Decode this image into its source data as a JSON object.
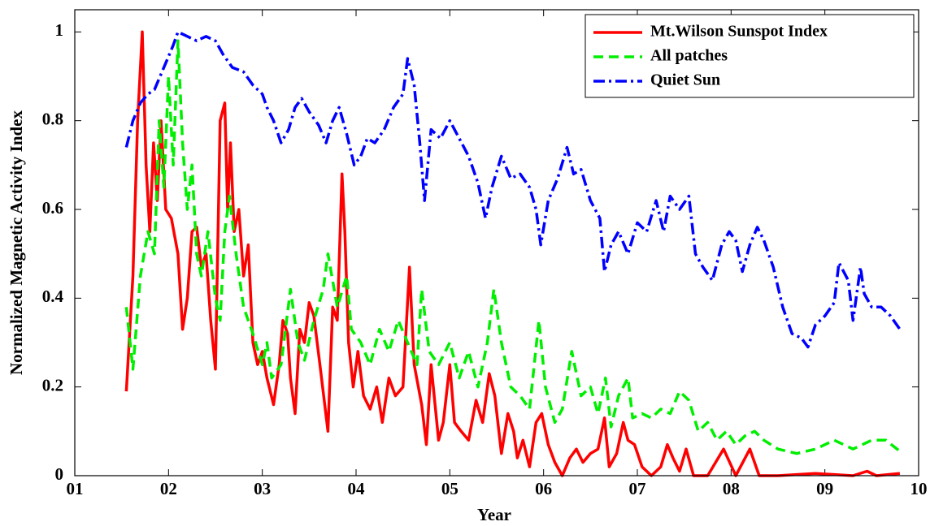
{
  "chart_data": {
    "type": "line",
    "x_label": "Year",
    "y_label": "Normalized Magnetic Activity Index",
    "xlim": [
      1,
      10
    ],
    "ylim": [
      0,
      1.05
    ],
    "xticks": [
      {
        "value": 1,
        "label": "01"
      },
      {
        "value": 2,
        "label": "02"
      },
      {
        "value": 3,
        "label": "03"
      },
      {
        "value": 4,
        "label": "04"
      },
      {
        "value": 5,
        "label": "05"
      },
      {
        "value": 6,
        "label": "06"
      },
      {
        "value": 7,
        "label": "07"
      },
      {
        "value": 8,
        "label": "08"
      },
      {
        "value": 9,
        "label": "09"
      },
      10
    ],
    "yticks": [
      0,
      0.2,
      0.4,
      0.6,
      0.8,
      1
    ],
    "grid": false,
    "legend": "upper right",
    "series": [
      {
        "name": "Mt.Wilson Sunspot Index",
        "color": "#ff0000",
        "dash": "solid",
        "x": [
          1.55,
          1.62,
          1.67,
          1.72,
          1.76,
          1.8,
          1.84,
          1.88,
          1.92,
          1.97,
          2.03,
          2.1,
          2.15,
          2.2,
          2.25,
          2.3,
          2.35,
          2.4,
          2.45,
          2.5,
          2.55,
          2.6,
          2.63,
          2.66,
          2.7,
          2.75,
          2.8,
          2.85,
          2.9,
          2.95,
          3.0,
          3.05,
          3.12,
          3.18,
          3.22,
          3.27,
          3.3,
          3.35,
          3.4,
          3.45,
          3.5,
          3.55,
          3.62,
          3.7,
          3.75,
          3.8,
          3.85,
          3.88,
          3.92,
          3.97,
          4.02,
          4.08,
          4.15,
          4.22,
          4.28,
          4.35,
          4.42,
          4.5,
          4.57,
          4.62,
          4.7,
          4.75,
          4.8,
          4.88,
          4.93,
          5.0,
          5.05,
          5.12,
          5.2,
          5.28,
          5.35,
          5.42,
          5.48,
          5.55,
          5.62,
          5.68,
          5.72,
          5.78,
          5.85,
          5.92,
          5.98,
          6.05,
          6.12,
          6.2,
          6.28,
          6.35,
          6.42,
          6.5,
          6.58,
          6.65,
          6.7,
          6.78,
          6.85,
          6.9,
          6.97,
          7.05,
          7.15,
          7.25,
          7.32,
          7.38,
          7.45,
          7.52,
          7.6,
          7.75,
          7.92,
          8.05,
          8.2,
          8.3,
          8.5,
          8.9,
          9.3,
          9.45,
          9.55,
          9.8
        ],
        "values": [
          0.19,
          0.45,
          0.8,
          1.0,
          0.7,
          0.55,
          0.75,
          0.62,
          0.8,
          0.6,
          0.58,
          0.5,
          0.33,
          0.4,
          0.55,
          0.56,
          0.47,
          0.5,
          0.35,
          0.24,
          0.8,
          0.84,
          0.6,
          0.75,
          0.55,
          0.6,
          0.45,
          0.52,
          0.3,
          0.25,
          0.28,
          0.22,
          0.16,
          0.25,
          0.35,
          0.32,
          0.22,
          0.14,
          0.33,
          0.3,
          0.39,
          0.36,
          0.24,
          0.1,
          0.38,
          0.35,
          0.68,
          0.55,
          0.3,
          0.2,
          0.28,
          0.18,
          0.15,
          0.2,
          0.12,
          0.22,
          0.18,
          0.2,
          0.47,
          0.25,
          0.16,
          0.07,
          0.25,
          0.08,
          0.12,
          0.25,
          0.12,
          0.1,
          0.08,
          0.17,
          0.12,
          0.23,
          0.18,
          0.05,
          0.14,
          0.1,
          0.04,
          0.08,
          0.02,
          0.12,
          0.14,
          0.07,
          0.03,
          0,
          0.04,
          0.06,
          0.03,
          0.05,
          0.06,
          0.13,
          0.02,
          0.05,
          0.12,
          0.08,
          0.07,
          0.02,
          0,
          0.02,
          0.07,
          0.04,
          0.01,
          0.06,
          0,
          0,
          0.06,
          0,
          0.06,
          0,
          0,
          0.005,
          0,
          0.01,
          0,
          0.005
        ]
      },
      {
        "name": "All patches",
        "color": "#00ee00",
        "dash": "dashed",
        "x": [
          1.55,
          1.62,
          1.7,
          1.78,
          1.85,
          1.9,
          1.95,
          2.0,
          2.05,
          2.1,
          2.15,
          2.2,
          2.25,
          2.3,
          2.35,
          2.42,
          2.5,
          2.55,
          2.6,
          2.65,
          2.72,
          2.8,
          2.9,
          3.0,
          3.05,
          3.1,
          3.2,
          3.3,
          3.38,
          3.45,
          3.55,
          3.65,
          3.7,
          3.8,
          3.9,
          3.95,
          4.05,
          4.15,
          4.25,
          4.35,
          4.45,
          4.55,
          4.65,
          4.7,
          4.78,
          4.88,
          5.0,
          5.1,
          5.2,
          5.3,
          5.4,
          5.47,
          5.55,
          5.65,
          5.75,
          5.85,
          5.95,
          6.02,
          6.12,
          6.2,
          6.3,
          6.4,
          6.5,
          6.58,
          6.66,
          6.72,
          6.8,
          6.9,
          6.95,
          7.05,
          7.15,
          7.25,
          7.35,
          7.45,
          7.55,
          7.65,
          7.75,
          7.85,
          7.95,
          8.05,
          8.15,
          8.25,
          8.35,
          8.5,
          8.7,
          8.9,
          9.1,
          9.3,
          9.5,
          9.65,
          9.8
        ],
        "values": [
          0.38,
          0.24,
          0.45,
          0.55,
          0.5,
          0.8,
          0.65,
          0.9,
          0.7,
          0.98,
          0.75,
          0.6,
          0.7,
          0.5,
          0.45,
          0.55,
          0.4,
          0.35,
          0.55,
          0.63,
          0.5,
          0.38,
          0.32,
          0.25,
          0.3,
          0.22,
          0.25,
          0.42,
          0.3,
          0.26,
          0.35,
          0.42,
          0.5,
          0.38,
          0.45,
          0.33,
          0.3,
          0.25,
          0.33,
          0.28,
          0.35,
          0.3,
          0.25,
          0.42,
          0.28,
          0.25,
          0.3,
          0.22,
          0.28,
          0.2,
          0.3,
          0.42,
          0.3,
          0.2,
          0.18,
          0.15,
          0.35,
          0.2,
          0.12,
          0.15,
          0.28,
          0.18,
          0.2,
          0.14,
          0.22,
          0.11,
          0.18,
          0.22,
          0.13,
          0.14,
          0.13,
          0.15,
          0.14,
          0.19,
          0.17,
          0.1,
          0.12,
          0.08,
          0.1,
          0.07,
          0.09,
          0.1,
          0.08,
          0.06,
          0.05,
          0.06,
          0.08,
          0.06,
          0.08,
          0.08,
          0.055
        ]
      },
      {
        "name": "Quiet Sun",
        "color": "#0000ff",
        "dash": "dashdot",
        "x": [
          1.55,
          1.62,
          1.7,
          1.78,
          1.85,
          1.95,
          2.05,
          2.1,
          2.2,
          2.3,
          2.4,
          2.5,
          2.58,
          2.68,
          2.8,
          2.9,
          3.0,
          3.05,
          3.12,
          3.2,
          3.28,
          3.35,
          3.42,
          3.5,
          3.6,
          3.68,
          3.75,
          3.82,
          3.9,
          3.98,
          4.05,
          4.12,
          4.2,
          4.3,
          4.4,
          4.5,
          4.55,
          4.62,
          4.68,
          4.73,
          4.8,
          4.9,
          5.0,
          5.1,
          5.2,
          5.3,
          5.38,
          5.45,
          5.55,
          5.65,
          5.75,
          5.85,
          5.92,
          5.97,
          6.05,
          6.15,
          6.25,
          6.32,
          6.4,
          6.5,
          6.6,
          6.65,
          6.72,
          6.8,
          6.9,
          7.0,
          7.1,
          7.2,
          7.28,
          7.35,
          7.45,
          7.55,
          7.62,
          7.7,
          7.8,
          7.9,
          7.98,
          8.05,
          8.12,
          8.2,
          8.28,
          8.35,
          8.45,
          8.55,
          8.65,
          8.75,
          8.82,
          8.9,
          9.0,
          9.1,
          9.15,
          9.25,
          9.3,
          9.38,
          9.42,
          9.5,
          9.6,
          9.7,
          9.8
        ],
        "values": [
          0.74,
          0.8,
          0.84,
          0.86,
          0.87,
          0.92,
          0.97,
          1.0,
          0.99,
          0.98,
          0.99,
          0.98,
          0.95,
          0.92,
          0.91,
          0.88,
          0.86,
          0.83,
          0.8,
          0.75,
          0.78,
          0.83,
          0.85,
          0.82,
          0.79,
          0.75,
          0.8,
          0.83,
          0.77,
          0.7,
          0.72,
          0.76,
          0.75,
          0.78,
          0.83,
          0.86,
          0.94,
          0.88,
          0.75,
          0.62,
          0.78,
          0.76,
          0.8,
          0.76,
          0.72,
          0.66,
          0.58,
          0.65,
          0.72,
          0.67,
          0.68,
          0.65,
          0.6,
          0.52,
          0.62,
          0.67,
          0.74,
          0.68,
          0.69,
          0.62,
          0.58,
          0.46,
          0.52,
          0.55,
          0.5,
          0.57,
          0.55,
          0.62,
          0.55,
          0.63,
          0.6,
          0.63,
          0.5,
          0.47,
          0.44,
          0.52,
          0.55,
          0.53,
          0.46,
          0.52,
          0.56,
          0.53,
          0.47,
          0.38,
          0.32,
          0.31,
          0.29,
          0.34,
          0.36,
          0.39,
          0.48,
          0.44,
          0.35,
          0.47,
          0.41,
          0.38,
          0.38,
          0.36,
          0.33
        ]
      }
    ]
  }
}
